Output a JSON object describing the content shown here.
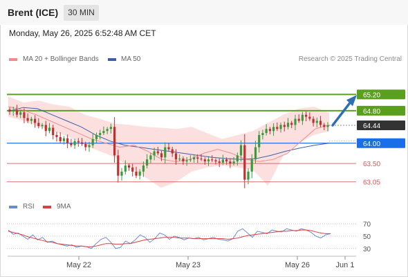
{
  "header": {
    "title": "Brent (ICE)",
    "timeframe": "30 MIN",
    "timestamp": "Monday, May 26, 2025 6:52:48 AM CET"
  },
  "legend": {
    "ma20_label": "MA 20 + Bollinger Bands",
    "ma50_label": "MA 50",
    "credit": "Research © 2025 Trading Central",
    "rsi_label": "RSI",
    "rsi_ma_label": "9MA"
  },
  "colors": {
    "ma20": "#f28c8c",
    "ma50": "#3e5fa8",
    "bollinger_fill": "#fcdcdc",
    "candle_up": "#3a9a3a",
    "candle_down": "#c03030",
    "resistance": "#5aa01e",
    "support": "#1a6fe8",
    "red_level": "#e05555",
    "price_tag": "#333333",
    "arrow": "#2f6eb5",
    "rsi": "#6b8ad6",
    "rsi_ma": "#d94040"
  },
  "chart_data": [
    {
      "type": "candlestick",
      "title": "",
      "x_tick_labels": [
        "May 22",
        "May 23",
        "May 26",
        "Jun 1"
      ],
      "ylim": [
        62.7,
        65.65
      ],
      "price_levels": [
        {
          "value": 65.2,
          "label": "65.20",
          "kind": "resistance"
        },
        {
          "value": 64.8,
          "label": "64.80",
          "kind": "resistance"
        },
        {
          "value": 64.44,
          "label": "64.44",
          "kind": "last"
        },
        {
          "value": 64.0,
          "label": "64.00",
          "kind": "support"
        },
        {
          "value": 63.5,
          "label": "63.50",
          "kind": "pivot"
        },
        {
          "value": 63.05,
          "label": "63.05",
          "kind": "pivot"
        }
      ],
      "close_series": [
        64.78,
        64.82,
        64.7,
        64.76,
        64.62,
        64.55,
        64.6,
        64.5,
        64.42,
        64.45,
        64.3,
        64.38,
        64.2,
        64.15,
        64.05,
        64.12,
        64.0,
        63.95,
        64.05,
        64.02,
        63.98,
        63.9,
        63.95,
        64.1,
        64.2,
        64.25,
        64.3,
        64.35,
        64.4,
        63.7,
        63.2,
        63.3,
        63.45,
        63.4,
        63.3,
        63.2,
        63.3,
        63.45,
        63.6,
        63.7,
        63.8,
        63.75,
        63.65,
        63.9,
        63.85,
        63.75,
        63.6,
        63.62,
        63.55,
        63.58,
        63.6,
        63.65,
        63.62,
        63.6,
        63.55,
        63.6,
        63.58,
        63.55,
        63.52,
        63.6,
        63.55,
        63.5,
        63.55,
        63.7,
        63.95,
        63.1,
        63.3,
        63.6,
        63.9,
        64.2,
        64.25,
        64.35,
        64.3,
        64.4,
        64.35,
        64.45,
        64.4,
        64.5,
        64.45,
        64.6,
        64.55,
        64.7,
        64.65,
        64.6,
        64.5,
        64.55,
        64.45,
        64.4,
        64.44
      ],
      "ma20": [
        64.9,
        64.82,
        64.7,
        64.55,
        64.4,
        64.25,
        64.1,
        64.0,
        63.9,
        63.95,
        63.8,
        63.6,
        63.55,
        63.6,
        63.75,
        63.85,
        63.75,
        63.6,
        63.55,
        63.6,
        63.75,
        64.05,
        64.35,
        64.45
      ],
      "ma50": [
        64.78,
        64.88,
        64.85,
        64.7,
        64.55,
        64.4,
        64.2,
        64.05,
        63.95,
        63.9,
        63.85,
        63.8,
        63.75,
        63.7,
        63.65,
        63.62,
        63.6,
        63.62,
        63.7,
        63.8,
        63.88,
        63.95,
        64.0
      ],
      "bollinger_upper": [
        65.15,
        65.0,
        65.05,
        64.95,
        64.9,
        64.7,
        64.6,
        64.48,
        64.45,
        64.4,
        64.38,
        64.35,
        64.4,
        64.25,
        64.1,
        64.2,
        64.3,
        64.5,
        64.7,
        64.85,
        64.9,
        64.75
      ],
      "bollinger_lower": [
        64.65,
        64.55,
        64.4,
        64.3,
        64.15,
        63.95,
        63.8,
        63.65,
        63.4,
        63.15,
        62.9,
        63.05,
        63.3,
        63.4,
        63.45,
        63.4,
        63.35,
        62.95,
        63.7,
        64.0,
        64.2,
        64.3
      ]
    },
    {
      "type": "line",
      "title": "",
      "yticks": [
        30,
        50,
        70
      ],
      "ylim": [
        22,
        78
      ],
      "series": [
        {
          "name": "RSI",
          "values": [
            60,
            53,
            55,
            50,
            45,
            52,
            44,
            48,
            40,
            42,
            38,
            36,
            34,
            36,
            32,
            34,
            33,
            30,
            38,
            45,
            48,
            40,
            30,
            32,
            42,
            38,
            44,
            52,
            48,
            40,
            46,
            55,
            52,
            45,
            50,
            48,
            44,
            47,
            46,
            48,
            44,
            46,
            48,
            45,
            44,
            42,
            46,
            58,
            62,
            55,
            48,
            58,
            56,
            54,
            60,
            58,
            57,
            62,
            60,
            58,
            62,
            60,
            56,
            50,
            47,
            52,
            54
          ]
        },
        {
          "name": "9MA",
          "values": [
            58,
            56,
            54,
            52,
            49,
            47,
            45,
            43,
            41,
            40,
            38,
            37,
            36,
            35,
            34,
            34,
            33,
            33,
            34,
            36,
            38,
            38,
            37,
            37,
            38,
            38,
            40,
            42,
            44,
            45,
            46,
            47,
            48,
            48,
            48,
            47,
            47,
            47,
            46,
            46,
            46,
            46,
            46,
            46,
            46,
            45,
            46,
            47,
            49,
            51,
            52,
            53,
            54,
            55,
            56,
            57,
            58,
            58,
            59,
            59,
            60,
            60,
            59,
            57,
            55,
            54,
            54
          ]
        }
      ]
    }
  ]
}
